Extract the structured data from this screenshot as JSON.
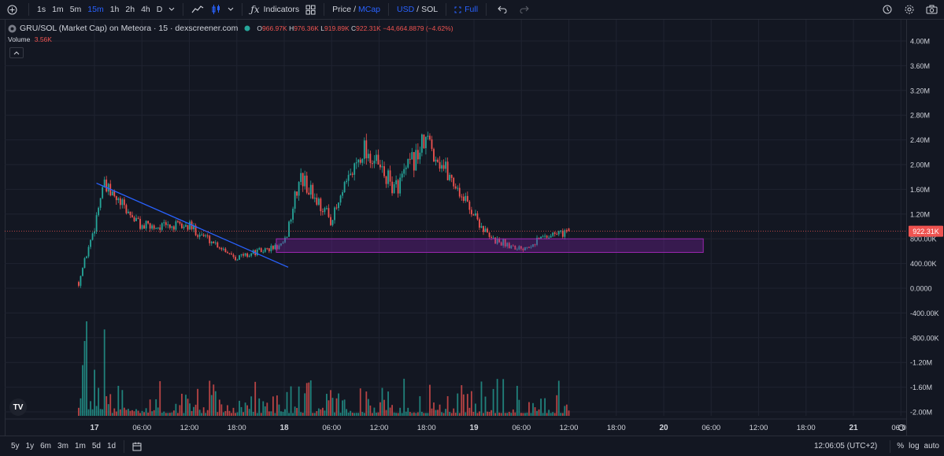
{
  "toolbar": {
    "intervals": [
      "1s",
      "1m",
      "5m",
      "15m",
      "1h",
      "2h",
      "4h",
      "D"
    ],
    "active_interval": "15m",
    "indicators_label": "Indicators",
    "price_label": "Price",
    "slash1": "/",
    "mcap_label": "MCap",
    "usd_label": "USD",
    "slash2": "/",
    "sol_label": "SOL",
    "full_label": "Full"
  },
  "legend": {
    "title": "GRU/SOL (Market Cap) on Meteora · 15 · dexscreener.com",
    "o_label": "O",
    "o_value": "966.97K",
    "h_label": "H",
    "h_value": "976.36K",
    "l_label": "L",
    "l_value": "919.89K",
    "c_label": "C",
    "c_value": "922.31K",
    "change": "−44,664.8879 (−4.62%)",
    "volume_label": "Volume",
    "volume_value": "3.56K"
  },
  "price_axis": {
    "ticks": [
      "4.00M",
      "3.60M",
      "3.20M",
      "2.80M",
      "2.40M",
      "2.00M",
      "1.60M",
      "1.20M",
      "800.00K",
      "400.00K",
      "0.0000",
      "-400.00K",
      "-800.00K",
      "-1.20M",
      "-1.60M",
      "-2.00M"
    ],
    "current_label": "922.31K"
  },
  "time_axis": {
    "ticks": [
      {
        "label": "17",
        "bold": true
      },
      {
        "label": "06:00"
      },
      {
        "label": "12:00"
      },
      {
        "label": "18:00"
      },
      {
        "label": "18",
        "bold": true
      },
      {
        "label": "06:00"
      },
      {
        "label": "12:00"
      },
      {
        "label": "18:00"
      },
      {
        "label": "19",
        "bold": true
      },
      {
        "label": "06:00"
      },
      {
        "label": "12:00"
      },
      {
        "label": "18:00"
      },
      {
        "label": "20",
        "bold": true
      },
      {
        "label": "06:00"
      },
      {
        "label": "12:00"
      },
      {
        "label": "18:00"
      },
      {
        "label": "21",
        "bold": true
      },
      {
        "label": "06:00"
      }
    ]
  },
  "bottom": {
    "ranges": [
      "5y",
      "1y",
      "6m",
      "3m",
      "1m",
      "5d",
      "1d"
    ],
    "clock": "12:06:05 (UTC+2)",
    "percent_label": "%",
    "log_label": "log",
    "auto_label": "auto"
  },
  "colors": {
    "up": "#26a69a",
    "down": "#ef5350",
    "trendline": "#2962ff",
    "zone_fill": "#7b1fa2",
    "zone_border": "#9c27b0",
    "accent": "#2962ff"
  },
  "chart_data": {
    "type": "candlestick",
    "title": "GRU/SOL (Market Cap) on Meteora · 15 · dexscreener.com",
    "interval": "15m",
    "y_unit": "market cap (USD)",
    "ylim": [
      -2000000,
      4000000
    ],
    "x_range": [
      "17 00:00",
      "21 06:00"
    ],
    "close_path": [
      {
        "t": "16 22:00",
        "v": 100000
      },
      {
        "t": "17 00:00",
        "v": 1000000
      },
      {
        "t": "17 01:00",
        "v": 1650000
      },
      {
        "t": "17 06:00",
        "v": 1000000
      },
      {
        "t": "17 12:00",
        "v": 1000000
      },
      {
        "t": "17 18:00",
        "v": 500000
      },
      {
        "t": "18 00:00",
        "v": 700000
      },
      {
        "t": "18 02:00",
        "v": 1800000
      },
      {
        "t": "18 06:00",
        "v": 1100000
      },
      {
        "t": "18 10:00",
        "v": 2300000
      },
      {
        "t": "18 14:00",
        "v": 1600000
      },
      {
        "t": "18 18:00",
        "v": 2400000
      },
      {
        "t": "18 23:00",
        "v": 1400000
      },
      {
        "t": "19 02:00",
        "v": 800000
      },
      {
        "t": "19 06:00",
        "v": 650000
      },
      {
        "t": "19 09:00",
        "v": 850000
      },
      {
        "t": "19 12:00",
        "v": 922310
      }
    ],
    "last_ohlc": {
      "open": 966970,
      "high": 976360,
      "low": 919890,
      "close": 922310
    },
    "last_change": -44664.8879,
    "last_change_pct": -4.62,
    "last_volume": 3560,
    "drawings": {
      "trendline": {
        "from": {
          "t": "17 00:15",
          "v": 1700000
        },
        "to": {
          "t": "18 00:30",
          "v": 340000
        }
      },
      "zone": {
        "t_start": "17 23:00",
        "t_end": "20 05:00",
        "v_high": 800000,
        "v_low": 580000
      }
    }
  }
}
